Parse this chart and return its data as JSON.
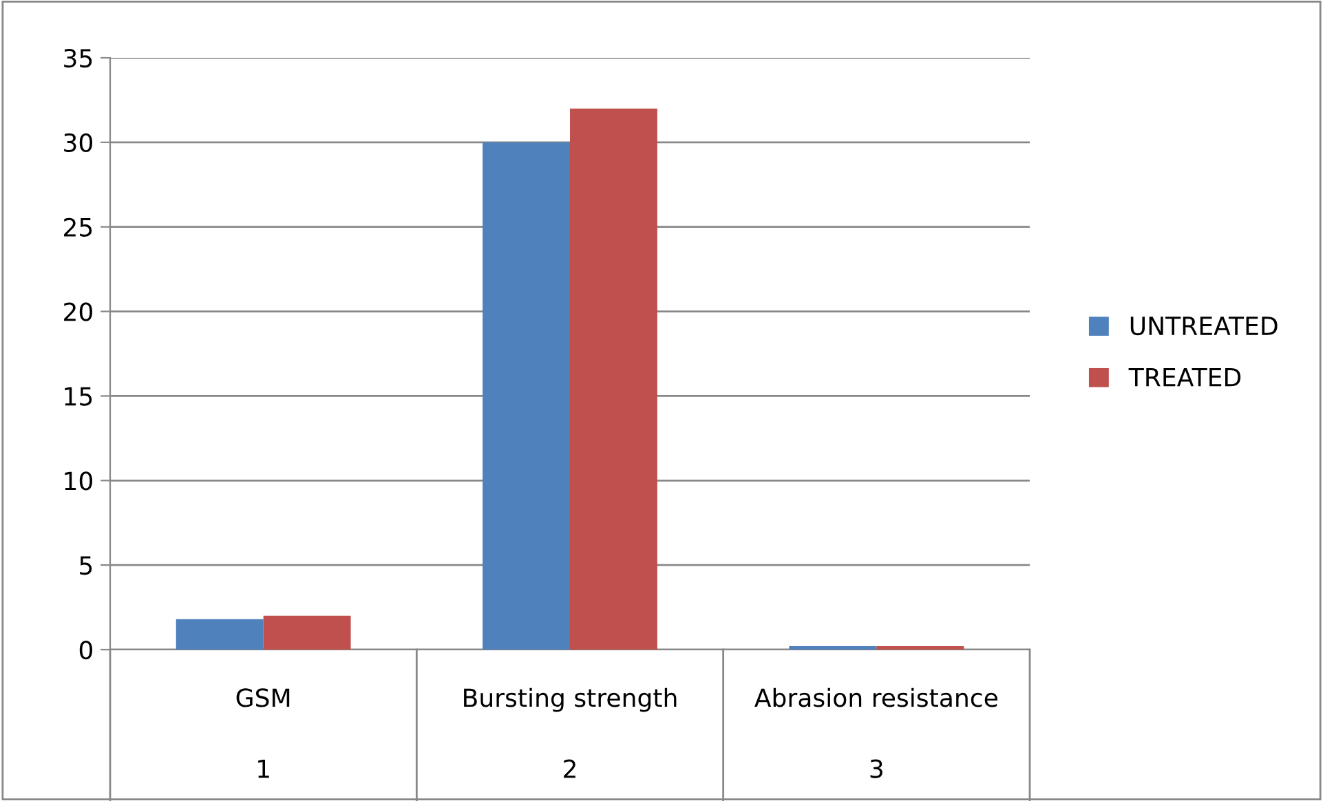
{
  "chart_data": {
    "type": "bar",
    "categories": [
      "GSM",
      "Bursting strength",
      "Abrasion resistance"
    ],
    "annotations": [
      "1",
      "2",
      "3"
    ],
    "series": [
      {
        "name": "UNTREATED",
        "color": "#4f81bd",
        "values": [
          1.8,
          30,
          0.2
        ]
      },
      {
        "name": "TREATED",
        "color": "#c0504d",
        "values": [
          2,
          32,
          0.2
        ]
      }
    ],
    "ylim": [
      0,
      35
    ],
    "yticks": [
      0,
      5,
      10,
      15,
      20,
      25,
      30,
      35
    ],
    "grid": "y",
    "legend": "right"
  }
}
